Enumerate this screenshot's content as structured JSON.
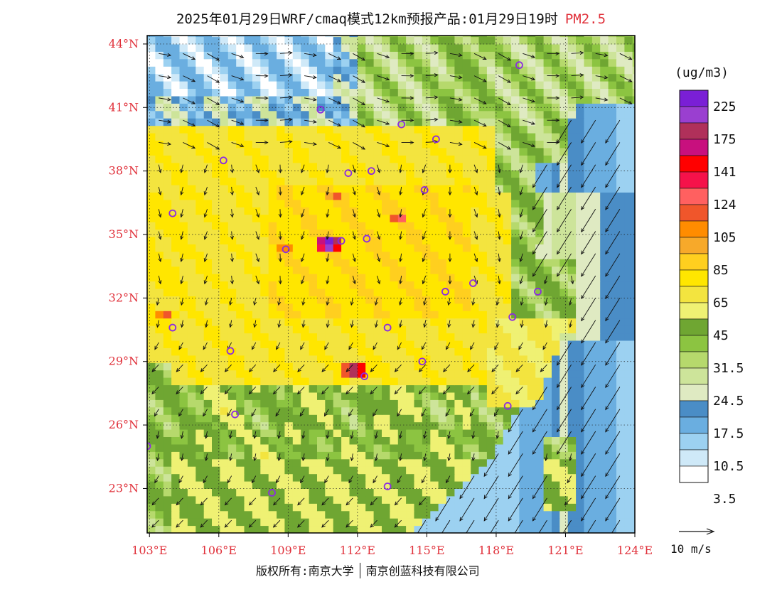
{
  "title": {
    "main": "2025年01月29日WRF/cmaq模式12km预报产品:01月29日19时",
    "pollutant": "PM2.5",
    "pollutant_color": "#e0303a"
  },
  "map": {
    "lat_labels": [
      "44°N",
      "41°N",
      "38°N",
      "35°N",
      "32°N",
      "29°N",
      "26°N",
      "23°N"
    ],
    "lon_labels": [
      "103°E",
      "106°E",
      "109°E",
      "112°E",
      "115°E",
      "118°E",
      "121°E",
      "124°E"
    ],
    "lat_values": [
      44,
      41,
      38,
      35,
      32,
      29,
      26,
      23
    ],
    "lon_values": [
      103,
      106,
      109,
      112,
      115,
      118,
      121,
      124
    ],
    "extent": {
      "lon_min": 102.9,
      "lon_max": 124,
      "lat_min": 20.9,
      "lat_max": 44.4
    },
    "label_color": "#e0303a",
    "fields": {
      "hotspots": [
        {
          "lon": 110.8,
          "lat": 34.6,
          "value": 200
        },
        {
          "lon": 113.8,
          "lat": 35.8,
          "value": 110
        },
        {
          "lon": 111.9,
          "lat": 28.6,
          "value": 180
        },
        {
          "lon": 103.7,
          "lat": 31.2,
          "value": 105
        },
        {
          "lon": 111.1,
          "lat": 36.8,
          "value": 95
        },
        {
          "lon": 108.8,
          "lat": 34.3,
          "value": 95
        }
      ]
    },
    "cities": [
      {
        "lon": 119.0,
        "lat": 43.0
      },
      {
        "lon": 110.4,
        "lat": 40.9
      },
      {
        "lon": 113.9,
        "lat": 40.2
      },
      {
        "lon": 115.4,
        "lat": 39.5
      },
      {
        "lon": 106.2,
        "lat": 38.5
      },
      {
        "lon": 111.6,
        "lat": 37.9
      },
      {
        "lon": 112.6,
        "lat": 38.0
      },
      {
        "lon": 114.9,
        "lat": 37.1
      },
      {
        "lon": 104.0,
        "lat": 36.0
      },
      {
        "lon": 112.4,
        "lat": 34.8
      },
      {
        "lon": 108.9,
        "lat": 34.3
      },
      {
        "lon": 111.3,
        "lat": 34.7
      },
      {
        "lon": 117.0,
        "lat": 32.7
      },
      {
        "lon": 115.8,
        "lat": 32.3
      },
      {
        "lon": 119.8,
        "lat": 32.3
      },
      {
        "lon": 118.7,
        "lat": 31.1
      },
      {
        "lon": 104.0,
        "lat": 30.6
      },
      {
        "lon": 113.3,
        "lat": 30.6
      },
      {
        "lon": 106.5,
        "lat": 29.5
      },
      {
        "lon": 114.8,
        "lat": 29.0
      },
      {
        "lon": 112.3,
        "lat": 28.3
      },
      {
        "lon": 118.5,
        "lat": 26.9
      },
      {
        "lon": 106.7,
        "lat": 26.5
      },
      {
        "lon": 102.9,
        "lat": 25.0
      },
      {
        "lon": 108.3,
        "lat": 22.8
      },
      {
        "lon": 113.3,
        "lat": 23.1
      }
    ],
    "city_marker_color": "#8b2be2"
  },
  "legend": {
    "unit": "(ug/m3)",
    "labels": [
      "225",
      "175",
      "141",
      "124",
      "105",
      "85",
      "65",
      "45",
      "31.5",
      "24.5",
      "17.5",
      "10.5",
      "3.5"
    ],
    "colors": [
      "#7a1fd6",
      "#9a3fd0",
      "#b0305a",
      "#c8107e",
      "#ff0000",
      "#f5124a",
      "#ff6060",
      "#f0562b",
      "#ff8c00",
      "#f7a92a",
      "#ffcf1f",
      "#ffe600",
      "#f3e43f",
      "#eff173",
      "#6fa632",
      "#8cc441",
      "#b6d96c",
      "#cde49a",
      "#dfeac2",
      "#4a8dc6",
      "#6aaee0",
      "#9cd1f1",
      "#cfe9f8",
      "#ffffff"
    ],
    "breakpoints": [
      3.5,
      7,
      10.5,
      14,
      17.5,
      21,
      24.5,
      28,
      31.5,
      38,
      45,
      55,
      65,
      75,
      85,
      95,
      105,
      115,
      124,
      132,
      141,
      158,
      175,
      200,
      225
    ]
  },
  "wind_scale": {
    "label": "10 m/s"
  },
  "footer": {
    "copyright": "版权所有:南京大学",
    "company": "南京创蓝科技有限公司"
  }
}
